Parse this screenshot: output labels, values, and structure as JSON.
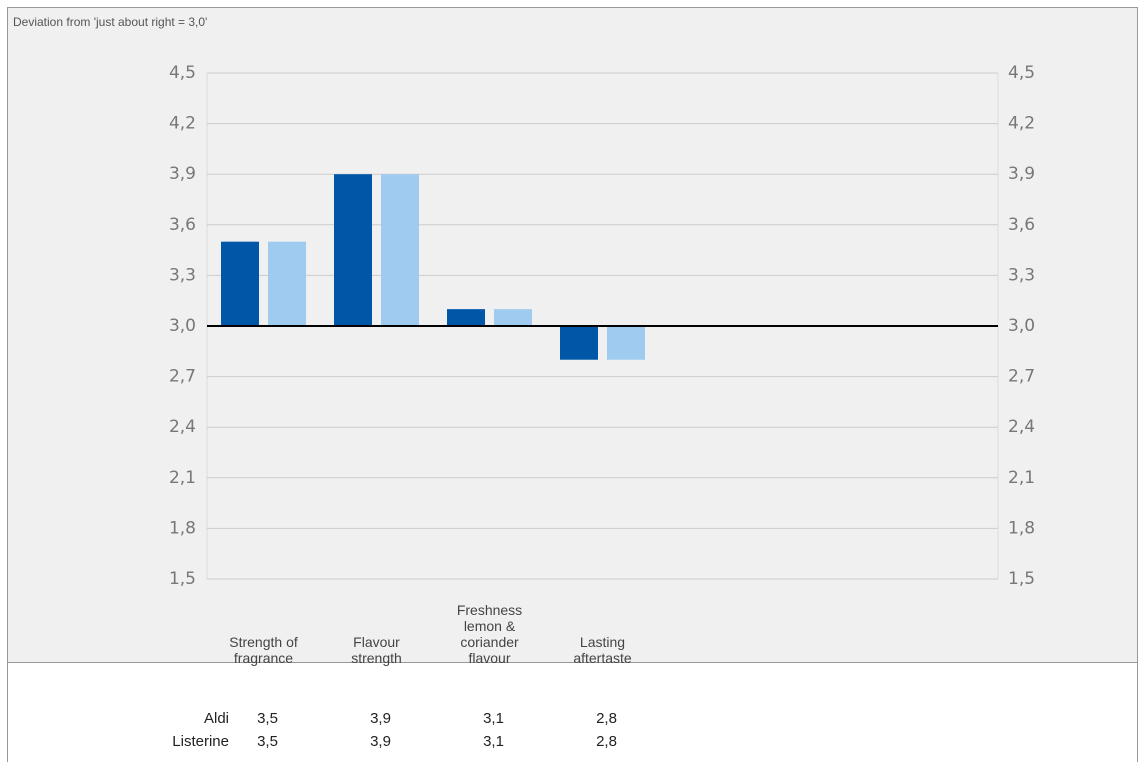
{
  "chart_data": {
    "type": "bar",
    "title": "Deviation from 'just about right = 3,0'",
    "categories": [
      "Strength of fragrance",
      "Flavour strength",
      "Freshness lemon & coriander flavour",
      "Lasting aftertaste"
    ],
    "series": [
      {
        "name": "Aldi",
        "color": "#0057a8",
        "values": [
          3.5,
          3.9,
          3.1,
          2.8
        ],
        "value_labels": [
          "3,5",
          "3,9",
          "3,1",
          "2,8"
        ]
      },
      {
        "name": "Listerine",
        "color": "#9ecbef",
        "values": [
          3.5,
          3.9,
          3.1,
          2.8
        ],
        "value_labels": [
          "3,5",
          "3,9",
          "3,1",
          "2,8"
        ]
      }
    ],
    "baseline": 3,
    "ylim": [
      1.5,
      4.5
    ],
    "yticks": [
      {
        "value": 1.5,
        "label": "1,5"
      },
      {
        "value": 1.8,
        "label": "1,8"
      },
      {
        "value": 2.1,
        "label": "2,1"
      },
      {
        "value": 2.4,
        "label": "2,4"
      },
      {
        "value": 2.7,
        "label": "2,7"
      },
      {
        "value": 3.0,
        "label": "3,0"
      },
      {
        "value": 3.3,
        "label": "3,3"
      },
      {
        "value": 3.6,
        "label": "3,6"
      },
      {
        "value": 3.9,
        "label": "3,9"
      },
      {
        "value": 4.2,
        "label": "4,2"
      },
      {
        "value": 4.5,
        "label": "4,5"
      }
    ],
    "grid": true
  }
}
